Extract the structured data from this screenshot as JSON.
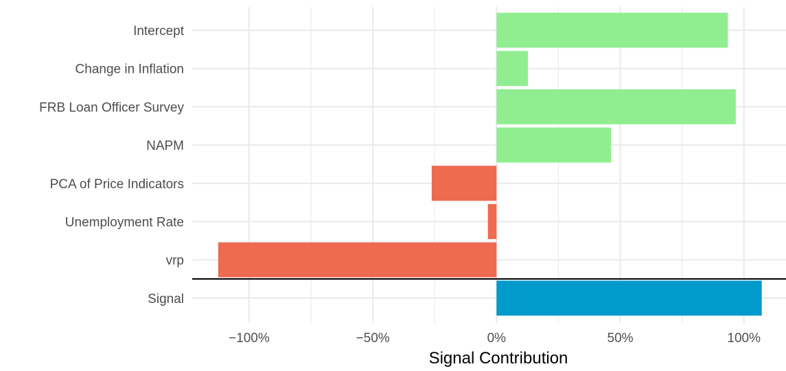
{
  "chart_data": {
    "type": "bar",
    "orientation": "horizontal",
    "categories": [
      "Intercept",
      "Change in Inflation",
      "FRB Loan Officer Survey",
      "NAPM",
      "PCA of Price Indicators",
      "Unemployment Rate",
      "vrp",
      "Signal"
    ],
    "values": [
      0.935,
      0.127,
      0.967,
      0.463,
      -0.262,
      -0.035,
      -1.125,
      1.072
    ],
    "value_unit": "fraction",
    "bar_colors": [
      "#90EE90",
      "#90EE90",
      "#90EE90",
      "#90EE90",
      "#EE6A50",
      "#EE6A50",
      "#EE6A50",
      "#009ACD"
    ],
    "xlabel": "Signal Contribution",
    "ylabel": "",
    "xlim": [
      -1.23,
      1.17
    ],
    "x_ticks": [
      -1.0,
      -0.5,
      0.0,
      0.5,
      1.0
    ],
    "x_tick_labels": [
      "−100%",
      "−50%",
      "0%",
      "50%",
      "100%"
    ],
    "grid": true,
    "separator_after_category": "vrp",
    "colors": {
      "positive": "#90EE90",
      "negative": "#EE6A50",
      "signal": "#009ACD",
      "grid": "#EBEBEB",
      "separator": "#000000"
    }
  }
}
